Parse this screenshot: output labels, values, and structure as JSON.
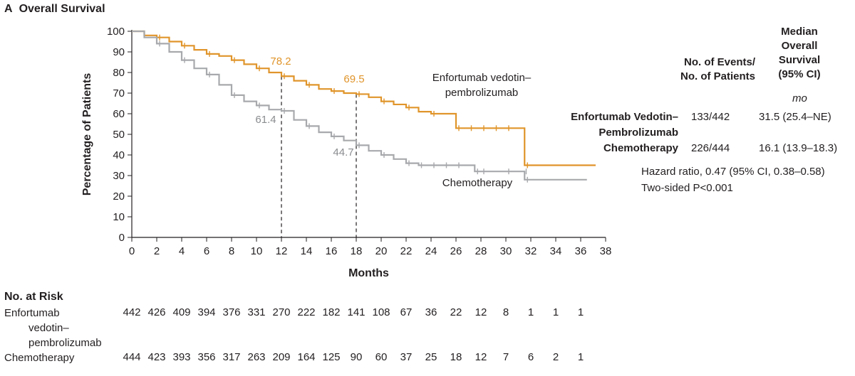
{
  "panel_label": "A",
  "panel_title": "Overall Survival",
  "chart_data": {
    "type": "line",
    "title": "Overall Survival",
    "xlabel": "Months",
    "ylabel": "Percentage of Patients",
    "xlim": [
      0,
      38
    ],
    "ylim": [
      0,
      100
    ],
    "x_ticks": [
      0,
      2,
      4,
      6,
      8,
      10,
      12,
      14,
      16,
      18,
      20,
      22,
      24,
      26,
      28,
      30,
      32,
      34,
      36,
      38
    ],
    "y_ticks": [
      0,
      10,
      20,
      30,
      40,
      50,
      60,
      70,
      80,
      90,
      100
    ],
    "grid": false,
    "series": [
      {
        "name": "Enfortumab vedotin– pembrolizumab",
        "label_lines": [
          "Enfortumab vedotin–",
          "pembrolizumab"
        ],
        "color": "#e0952b",
        "x": [
          0,
          1,
          2,
          3,
          4,
          5,
          6,
          7,
          8,
          9,
          10,
          11,
          12,
          13,
          14,
          15,
          16,
          17,
          18,
          19,
          20,
          21,
          22,
          23,
          24,
          25,
          26,
          27,
          28,
          29,
          30,
          31.4,
          31.5,
          37.2
        ],
        "y": [
          100,
          98,
          97,
          95,
          93,
          91,
          89,
          88,
          86,
          84,
          82,
          80,
          78.2,
          76,
          74,
          72,
          71,
          70,
          69.5,
          68,
          66,
          64.5,
          63,
          61,
          60,
          60,
          53,
          53,
          53,
          53,
          53,
          53,
          35,
          35
        ]
      },
      {
        "name": "Chemotherapy",
        "label_lines": [
          "Chemotherapy"
        ],
        "color": "#a7a9ac",
        "x": [
          0,
          1,
          2,
          3,
          4,
          5,
          6,
          7,
          8,
          9,
          10,
          11,
          12,
          13,
          14,
          15,
          16,
          17,
          18,
          19,
          20,
          21,
          22,
          23,
          24,
          25,
          26,
          27.5,
          28,
          30,
          31.4,
          31.5,
          36.5
        ],
        "y": [
          100,
          97,
          94,
          90,
          86,
          82,
          79,
          74,
          69,
          66,
          64,
          62,
          61.4,
          57,
          54,
          51,
          49,
          47,
          44.7,
          42,
          40,
          38,
          36,
          35,
          35,
          35,
          35,
          32,
          32,
          32,
          32,
          28,
          28
        ]
      }
    ],
    "annotations": [
      {
        "text": "78.2",
        "x": 12,
        "y": 78.2,
        "color": "#e0952b"
      },
      {
        "text": "69.5",
        "x": 18,
        "y": 69.5,
        "color": "#e0952b"
      },
      {
        "text": "61.4",
        "x": 12,
        "y": 61.4,
        "color": "#a7a9ac"
      },
      {
        "text": "44.7",
        "x": 18,
        "y": 44.7,
        "color": "#a7a9ac"
      }
    ],
    "reference_lines_x": [
      12,
      18
    ]
  },
  "stats_table": {
    "header_events": [
      "No. of Events/",
      "No. of Patients"
    ],
    "header_survival": [
      "Median",
      "Overall",
      "Survival",
      "(95% CI)"
    ],
    "unit": "mo",
    "rows": [
      {
        "name_lines": [
          "Enfortumab Vedotin–",
          "Pembrolizumab"
        ],
        "events": "133/442",
        "survival": "31.5 (25.4–NE)"
      },
      {
        "name_lines": [
          "Chemotherapy"
        ],
        "events": "226/444",
        "survival": "16.1 (13.9–18.3)"
      }
    ],
    "hazard_ratio": "Hazard ratio, 0.47 (95% CI, 0.38–0.58)",
    "p_value": "Two-sided P<0.001"
  },
  "risk_table": {
    "title": "No. at Risk",
    "rows": [
      {
        "label_lines": [
          "Enfortumab",
          "vedotin–",
          "pembrolizumab"
        ],
        "values": [
          "442",
          "426",
          "409",
          "394",
          "376",
          "331",
          "270",
          "222",
          "182",
          "141",
          "108",
          "67",
          "36",
          "22",
          "12",
          "8",
          "1",
          "1",
          "1"
        ]
      },
      {
        "label_lines": [
          "Chemotherapy"
        ],
        "values": [
          "444",
          "423",
          "393",
          "356",
          "317",
          "263",
          "209",
          "164",
          "125",
          "90",
          "60",
          "37",
          "25",
          "18",
          "12",
          "7",
          "6",
          "2",
          "1"
        ]
      }
    ]
  }
}
